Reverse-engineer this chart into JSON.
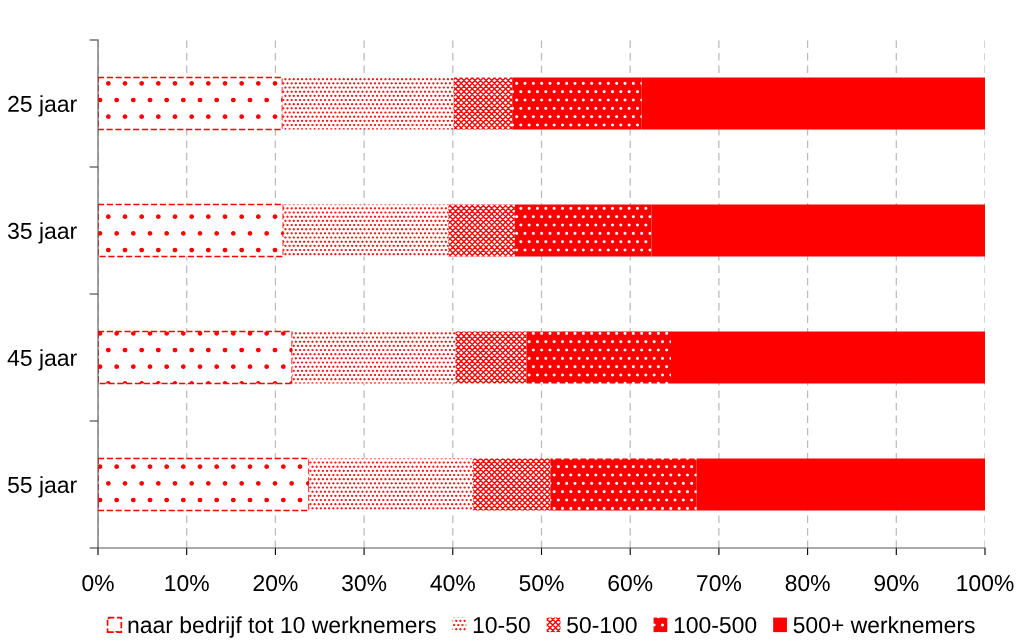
{
  "chart_data": {
    "type": "bar",
    "orientation": "horizontal",
    "stacked": true,
    "categories": [
      "25 jaar",
      "35 jaar",
      "45 jaar",
      "55 jaar"
    ],
    "series": [
      {
        "name": "naar bedrijf tot 10 werknemers",
        "color": "#ff0000",
        "values": [
          20.8,
          20.9,
          21.9,
          23.8
        ]
      },
      {
        "name": "10-50",
        "color": "#ff0000",
        "values": [
          19.3,
          18.6,
          18.4,
          18.5
        ]
      },
      {
        "name": "50-100",
        "color": "#ff0000",
        "values": [
          6.6,
          7.5,
          8.0,
          8.7
        ]
      },
      {
        "name": "100-500",
        "color": "#ff0000",
        "values": [
          14.6,
          15.4,
          16.3,
          16.5
        ]
      },
      {
        "name": "500+ werknemers",
        "color": "#ff0000",
        "values": [
          38.7,
          37.6,
          35.4,
          32.5
        ]
      }
    ],
    "xlim": [
      0,
      100
    ],
    "xticks": [
      {
        "value": 0,
        "label": "0%"
      },
      {
        "value": 10,
        "label": "10%"
      },
      {
        "value": 20,
        "label": "20%"
      },
      {
        "value": 30,
        "label": "30%"
      },
      {
        "value": 40,
        "label": "40%"
      },
      {
        "value": 50,
        "label": "50%"
      },
      {
        "value": 60,
        "label": "60%"
      },
      {
        "value": 70,
        "label": "70%"
      },
      {
        "value": 80,
        "label": "80%"
      },
      {
        "value": 90,
        "label": "90%"
      },
      {
        "value": 100,
        "label": "100%"
      }
    ],
    "grid": "x",
    "legend": "bottom"
  }
}
